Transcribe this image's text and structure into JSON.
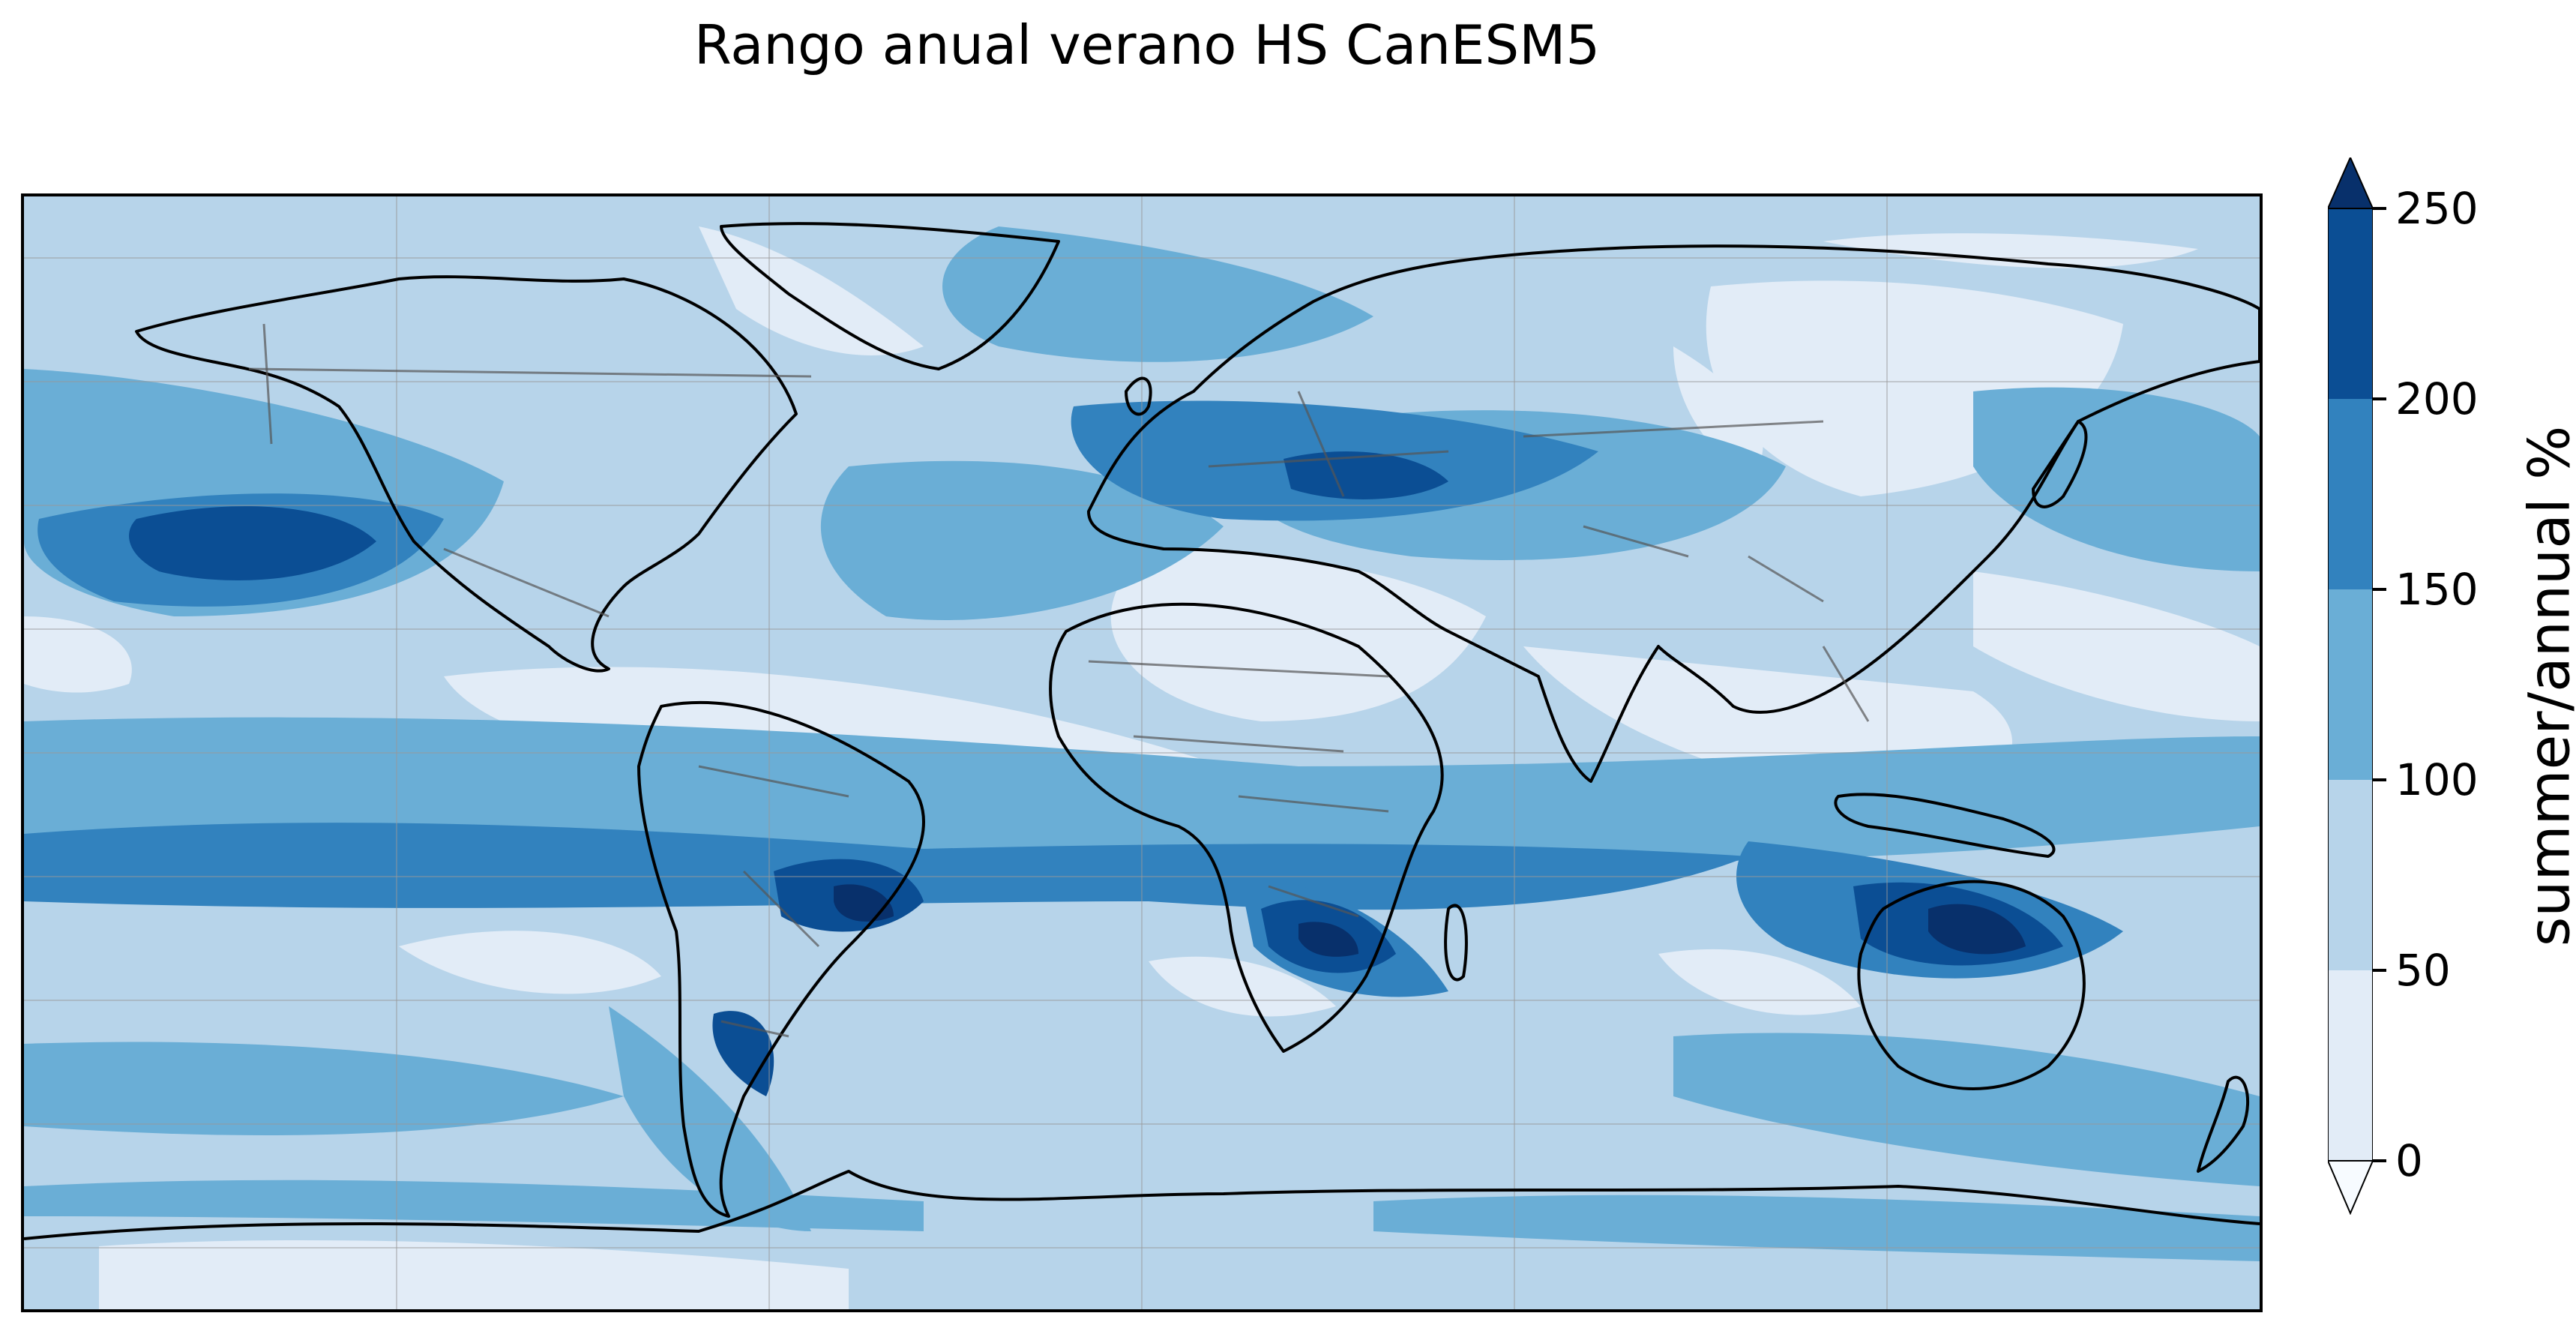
{
  "title": "Rango anual verano HS CanESM5",
  "colorbar": {
    "label": "summer/annual %",
    "levels": [
      {
        "value": "0",
        "color": "#e2ecf7"
      },
      {
        "value": "50",
        "color": "#b7d4ea"
      },
      {
        "value": "100",
        "color": "#6aaed6"
      },
      {
        "value": "150",
        "color": "#3282be"
      },
      {
        "value": "200",
        "color": "#0b4e94"
      },
      {
        "value": "250",
        "color": "#08306b"
      }
    ],
    "extend": "both",
    "under_color": "#f7fbff",
    "over_color": "#08306b"
  },
  "chart_data": {
    "type": "heatmap",
    "projection": "PlateCarree",
    "region": "global",
    "lon_range": [
      -180,
      180
    ],
    "lat_range": [
      -90,
      90
    ],
    "gridlines": true,
    "coastlines": true,
    "borders": true,
    "colormap": "Blues",
    "value_range": [
      0,
      250
    ],
    "bins": [
      0,
      50,
      100,
      150,
      200,
      250
    ]
  }
}
